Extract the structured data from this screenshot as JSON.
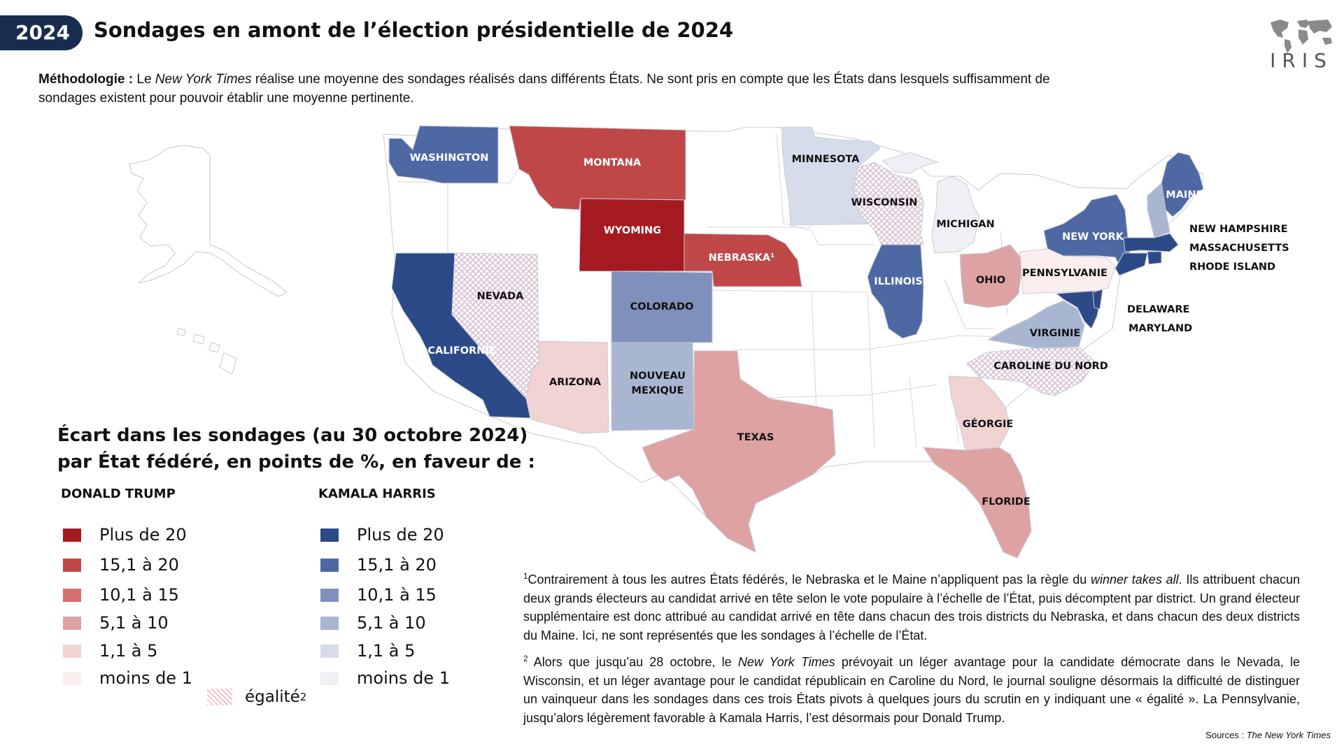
{
  "header": {
    "year_badge": "2024",
    "title": "Sondages en amont de l’élection présidentielle de 2024",
    "logo_text": "IRIS"
  },
  "methodology": {
    "label": "Méthodologie :",
    "text_before": " Le ",
    "nyt": "New York Times",
    "text_after": " réalise une moyenne des sondages réalisés dans différents États. Ne sont pris en compte que les États dans lesquels suffisamment de sondages existent pour pouvoir établir une moyenne pertinente."
  },
  "colors": {
    "trump_20": "#a51a20",
    "trump_15": "#c04748",
    "trump_10": "#d4716f",
    "trump_5": "#dea2a3",
    "trump_1": "#f1d3d3",
    "trump_0": "#faeeee",
    "harris_20": "#2c4a87",
    "harris_15": "#4e68a3",
    "harris_10": "#7e90bb",
    "harris_5": "#a9b6d2",
    "harris_1": "#d6dce9",
    "harris_0": "#eff0f6",
    "no_data": "#ffffff",
    "border": "#c9cbd2"
  },
  "states": [
    {
      "id": "washington",
      "label": "WASHINGTON",
      "category": "harris_15"
    },
    {
      "id": "montana",
      "label": "MONTANA",
      "category": "trump_15"
    },
    {
      "id": "minnesota",
      "label": "MINNESOTA",
      "category": "harris_1"
    },
    {
      "id": "wisconsin",
      "label": "WISCONSIN",
      "category": "tie"
    },
    {
      "id": "michigan",
      "label": "MICHIGAN",
      "category": "harris_0"
    },
    {
      "id": "maine",
      "label": "MAINE¹",
      "category": "harris_15"
    },
    {
      "id": "new_hampshire",
      "label": "NEW HAMPSHIRE",
      "category": "harris_5"
    },
    {
      "id": "massachusetts",
      "label": "MASSACHUSETTS",
      "category": "harris_20"
    },
    {
      "id": "rhode_island",
      "label": "RHODE ISLAND",
      "category": "harris_20"
    },
    {
      "id": "new_york",
      "label": "NEW YORK",
      "category": "harris_15"
    },
    {
      "id": "wyoming",
      "label": "WYOMING",
      "category": "trump_20"
    },
    {
      "id": "nebraska",
      "label": "NEBRASKA¹",
      "category": "trump_15"
    },
    {
      "id": "california",
      "label": "CALIFORNIE",
      "category": "harris_20"
    },
    {
      "id": "nevada",
      "label": "NEVADA",
      "category": "tie"
    },
    {
      "id": "colorado",
      "label": "COLORADO",
      "category": "harris_10"
    },
    {
      "id": "illinois",
      "label": "ILLINOIS",
      "category": "harris_15"
    },
    {
      "id": "ohio",
      "label": "OHIO",
      "category": "trump_5"
    },
    {
      "id": "pennsylvania",
      "label": "PENNSYLVANIE",
      "category": "trump_0"
    },
    {
      "id": "delaware",
      "label": "DELAWARE",
      "category": "harris_20"
    },
    {
      "id": "maryland",
      "label": "MARYLAND",
      "category": "harris_20"
    },
    {
      "id": "virginia",
      "label": "VIRGINIE",
      "category": "harris_5"
    },
    {
      "id": "north_carolina",
      "label": "CAROLINE DU NORD",
      "category": "tie"
    },
    {
      "id": "arizona",
      "label": "ARIZONA",
      "category": "trump_1"
    },
    {
      "id": "new_mexico",
      "label": "NOUVEAU MEXIQUE",
      "category": "harris_5"
    },
    {
      "id": "texas",
      "label": "TEXAS",
      "category": "trump_5"
    },
    {
      "id": "georgia",
      "label": "GÉORGIE",
      "category": "trump_1"
    },
    {
      "id": "florida",
      "label": "FLORIDE",
      "category": "trump_5"
    }
  ],
  "legend": {
    "title_line1": "Écart dans les sondages (au 30 octobre 2024)",
    "title_line2": "par État fédéré, en points de %, en faveur de :",
    "trump_head": "DONALD TRUMP",
    "harris_head": "KAMALA HARRIS",
    "rows": [
      "Plus de 20",
      "15,1 à 20",
      "10,1 à 15",
      "5,1 à 10",
      "1,1 à 5",
      "moins de 1"
    ],
    "tie_label": "égalité",
    "tie_sup": "2"
  },
  "notes": {
    "n1_sup": "1",
    "n1_a": "Contrairement à tous les autres États fédérés, le Nebraska et le Maine n’appliquent pas la règle du ",
    "n1_em": "winner takes all",
    "n1_b": ". Ils attribuent chacun deux grands électeurs au candidat arrivé en tête selon le vote populaire à l’échelle de l’État, puis décomptent par district. Un grand électeur supplémentaire est donc attribué au candidat arrivé en tête dans chacun des trois districts du Nebraska, et dans chacun des deux districts du Maine. Ici, ne sont représentés que les sondages à l’échelle de l’État.",
    "n2_sup": "2",
    "n2_a": " Alors que jusqu’au 28 octobre, le ",
    "n2_em": "New York Times",
    "n2_b": " prévoyait un léger avantage pour la candidate démocrate dans le Nevada, le Wisconsin, et un léger avantage pour le candidat républicain en Caroline du Nord, le journal souligne désormais la difficulté de distinguer un vainqueur dans les sondages dans ces trois États pivots à quelques jours du scrutin en y indiquant une « égalité ». La Pennsylvanie, jusqu’alors légèrement favorable à Kamala Harris, l’est désormais pour Donald Trump."
  },
  "source": {
    "prefix": "Sources : ",
    "name": "The New York Times"
  }
}
